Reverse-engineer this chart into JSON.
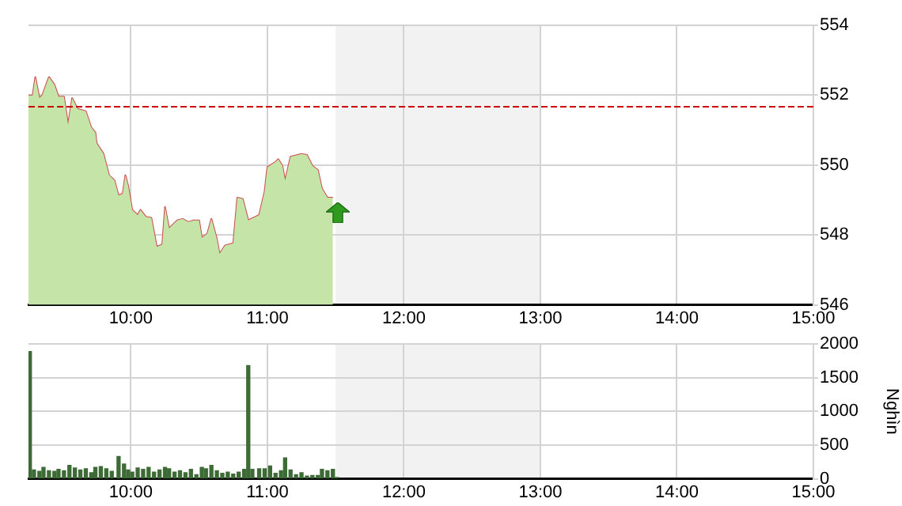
{
  "chart_data": [
    {
      "type": "area",
      "xlim": [
        9.25,
        15
      ],
      "xticks": [
        {
          "value": 10,
          "label": "10:00"
        },
        {
          "value": 11,
          "label": "11:00"
        },
        {
          "value": 12,
          "label": "12:00"
        },
        {
          "value": 13,
          "label": "13:00"
        },
        {
          "value": 14,
          "label": "14:00"
        },
        {
          "value": 15,
          "label": "15:00"
        }
      ],
      "ylim": [
        546,
        554
      ],
      "yticks": [
        546,
        548,
        550,
        552,
        554
      ],
      "grid": true,
      "legend": false,
      "marker": "none",
      "series": [
        {
          "color": "#c4e4a8",
          "x": [
            9.25,
            9.28,
            9.3,
            9.33,
            9.35,
            9.4,
            9.44,
            9.47,
            9.51,
            9.54,
            9.57,
            9.61,
            9.67,
            9.71,
            9.74,
            9.75,
            9.8,
            9.84,
            9.88,
            9.91,
            9.94,
            9.96,
            9.98,
            10.01,
            10.05,
            10.07,
            10.11,
            10.15,
            10.19,
            10.23,
            10.25,
            10.28,
            10.34,
            10.38,
            10.42,
            10.46,
            10.5,
            10.52,
            10.56,
            10.59,
            10.63,
            10.65,
            10.69,
            10.75,
            10.78,
            10.82,
            10.86,
            10.94,
            10.98,
            11.0,
            11.06,
            11.08,
            11.11,
            11.13,
            11.17,
            11.25,
            11.29,
            11.33,
            11.37,
            11.4,
            11.44,
            11.48
          ],
          "values": [
            551.99,
            551.99,
            552.52,
            551.92,
            551.99,
            552.52,
            552.3,
            551.96,
            551.96,
            551.16,
            551.92,
            551.61,
            551.54,
            551.08,
            550.93,
            550.62,
            550.32,
            549.71,
            549.56,
            549.13,
            549.18,
            549.71,
            549.41,
            548.72,
            548.57,
            548.72,
            548.52,
            548.49,
            547.66,
            547.73,
            548.8,
            548.19,
            548.42,
            548.46,
            548.37,
            548.42,
            548.42,
            547.92,
            548.04,
            548.46,
            547.89,
            547.46,
            547.7,
            547.76,
            549.07,
            549.03,
            548.42,
            548.57,
            549.25,
            549.94,
            550.09,
            550.17,
            549.98,
            549.56,
            550.24,
            550.32,
            550.29,
            549.98,
            549.86,
            549.33,
            549.07,
            549.07
          ]
        },
        {
          "type": "line",
          "color": "#cc4c4c",
          "x": [
            9.25,
            9.28,
            9.3,
            9.33,
            9.35,
            9.4,
            9.44,
            9.47,
            9.51,
            9.54,
            9.57,
            9.61,
            9.67,
            9.71,
            9.74,
            9.75,
            9.8,
            9.84,
            9.88,
            9.91,
            9.94,
            9.96,
            9.98,
            10.01,
            10.05,
            10.07,
            10.11,
            10.15,
            10.19,
            10.23,
            10.25,
            10.28,
            10.34,
            10.38,
            10.42,
            10.46,
            10.5,
            10.52,
            10.56,
            10.59,
            10.63,
            10.65,
            10.69,
            10.75,
            10.78,
            10.82,
            10.86,
            10.94,
            10.98,
            11.0,
            11.06,
            11.08,
            11.11,
            11.13,
            11.17,
            11.25,
            11.29,
            11.33,
            11.37,
            11.4,
            11.44,
            11.48
          ],
          "values": [
            551.99,
            551.99,
            552.52,
            551.92,
            551.99,
            552.52,
            552.3,
            551.96,
            551.96,
            551.16,
            551.92,
            551.61,
            551.54,
            551.08,
            550.93,
            550.62,
            550.32,
            549.71,
            549.56,
            549.13,
            549.18,
            549.71,
            549.41,
            548.72,
            548.57,
            548.72,
            548.52,
            548.49,
            547.66,
            547.73,
            548.8,
            548.19,
            548.42,
            548.46,
            548.37,
            548.42,
            548.42,
            547.92,
            548.04,
            548.46,
            547.89,
            547.46,
            547.7,
            547.76,
            549.07,
            549.03,
            548.42,
            548.57,
            549.25,
            549.94,
            550.09,
            550.17,
            549.98,
            549.56,
            550.24,
            550.32,
            550.29,
            549.98,
            549.86,
            549.33,
            549.07,
            549.07
          ]
        }
      ],
      "ref_lines": [
        {
          "axis": "y",
          "value": 551.67,
          "color": "#cc0000",
          "line_style": "dashed"
        }
      ],
      "bands": [
        {
          "axis": "x",
          "from": 11.5,
          "to": 13,
          "color": "#f2f2f2"
        }
      ]
    },
    {
      "type": "bar",
      "ylabel": "Nghìn",
      "xlim": [
        9.25,
        15
      ],
      "xticks": [
        {
          "value": 10,
          "label": "10:00"
        },
        {
          "value": 11,
          "label": "11:00"
        },
        {
          "value": 12,
          "label": "12:00"
        },
        {
          "value": 13,
          "label": "13:00"
        },
        {
          "value": 14,
          "label": "14:00"
        },
        {
          "value": 15,
          "label": "15:00"
        }
      ],
      "ylim": [
        0,
        2000
      ],
      "yticks": [
        0,
        500,
        1000,
        1500,
        2000
      ],
      "grid": true,
      "legend": false,
      "series": [
        {
          "color": "#3d6b35",
          "x": [
            9.26,
            9.29,
            9.33,
            9.36,
            9.4,
            9.44,
            9.47,
            9.51,
            9.55,
            9.59,
            9.63,
            9.67,
            9.71,
            9.74,
            9.78,
            9.82,
            9.86,
            9.91,
            9.95,
            9.98,
            10.01,
            10.05,
            10.09,
            10.13,
            10.17,
            10.21,
            10.25,
            10.28,
            10.32,
            10.36,
            10.4,
            10.44,
            10.48,
            10.52,
            10.55,
            10.59,
            10.63,
            10.67,
            10.71,
            10.75,
            10.79,
            10.83,
            10.86,
            10.89,
            10.94,
            10.98,
            11.02,
            11.06,
            11.1,
            11.13,
            11.17,
            11.21,
            11.25,
            11.29,
            11.33,
            11.37,
            11.4,
            11.44,
            11.48,
            11.51
          ],
          "values": [
            1890,
            130,
            110,
            170,
            120,
            110,
            140,
            120,
            200,
            160,
            130,
            150,
            90,
            170,
            180,
            150,
            110,
            330,
            220,
            130,
            100,
            160,
            140,
            170,
            100,
            130,
            170,
            150,
            100,
            120,
            90,
            140,
            60,
            170,
            150,
            200,
            120,
            80,
            100,
            70,
            100,
            140,
            1680,
            140,
            150,
            150,
            190,
            80,
            120,
            310,
            130,
            60,
            90,
            40,
            50,
            50,
            140,
            120,
            140,
            20
          ]
        }
      ],
      "bands": [
        {
          "axis": "x",
          "from": 11.5,
          "to": 13,
          "color": "#f2f2f2"
        }
      ]
    }
  ]
}
